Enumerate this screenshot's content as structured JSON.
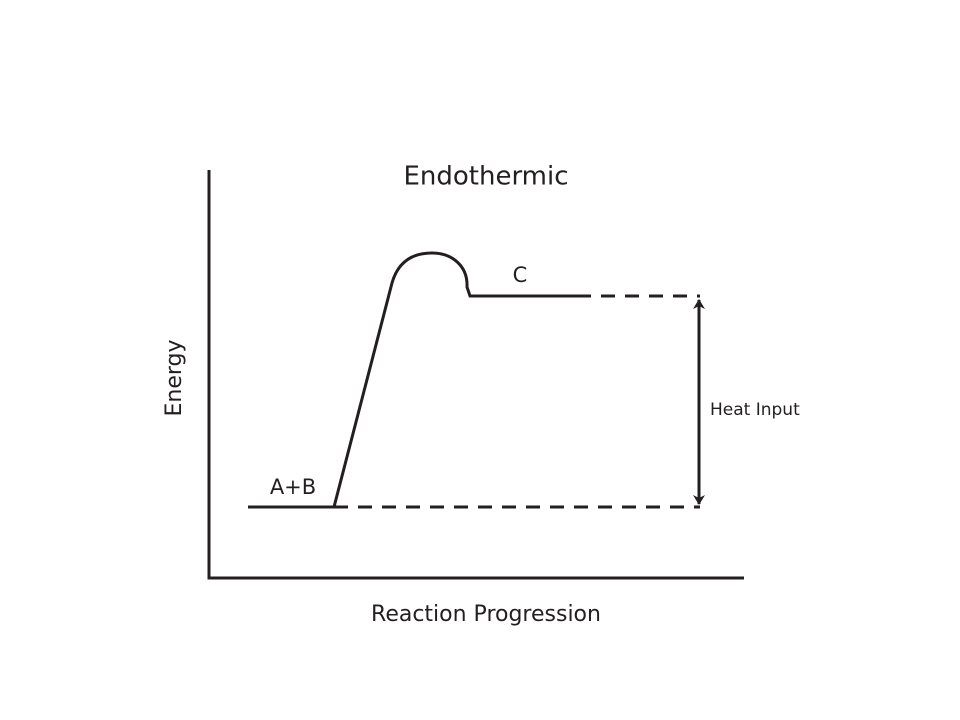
{
  "title": "Endothermic",
  "y_axis_label": "Energy",
  "x_axis_label": "Reaction Progression",
  "reactants_label": "A+B",
  "product_label": "C",
  "arrow_label": "Heat Input"
}
